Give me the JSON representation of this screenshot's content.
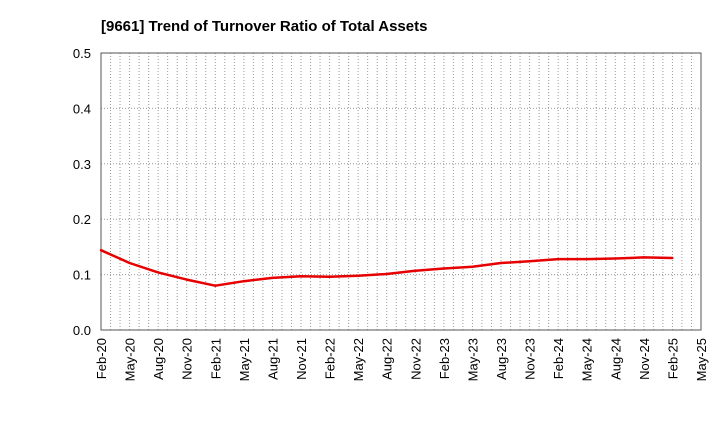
{
  "chart_data": {
    "type": "line",
    "title": "[9661]  Trend of Turnover Ratio of Total Assets",
    "xlabel": "",
    "ylabel": "",
    "ylim": [
      0,
      0.5
    ],
    "yticks": [
      "0.0",
      "0.1",
      "0.2",
      "0.3",
      "0.4",
      "0.5"
    ],
    "xticks": [
      "Feb-20",
      "May-20",
      "Aug-20",
      "Nov-20",
      "Feb-21",
      "May-21",
      "Aug-21",
      "Nov-21",
      "Feb-22",
      "May-22",
      "Aug-22",
      "Nov-22",
      "Feb-23",
      "May-23",
      "Aug-23",
      "Nov-23",
      "Feb-24",
      "May-24",
      "Aug-24",
      "Nov-24",
      "Feb-25",
      "May-25"
    ],
    "grid": true,
    "series": [
      {
        "color": "#e60000",
        "x": [
          "Feb-20",
          "May-20",
          "Aug-20",
          "Nov-20",
          "Feb-21",
          "May-21",
          "Aug-21",
          "Nov-21",
          "Feb-22",
          "May-22",
          "Aug-22",
          "Nov-22",
          "Feb-23",
          "May-23",
          "Aug-23",
          "Nov-23",
          "Feb-24",
          "May-24",
          "Aug-24",
          "Nov-24",
          "Feb-25"
        ],
        "values": [
          0.144,
          0.121,
          0.104,
          0.091,
          0.08,
          0.088,
          0.094,
          0.097,
          0.096,
          0.098,
          0.101,
          0.107,
          0.111,
          0.114,
          0.121,
          0.124,
          0.128,
          0.128,
          0.129,
          0.131,
          0.13
        ]
      }
    ]
  }
}
